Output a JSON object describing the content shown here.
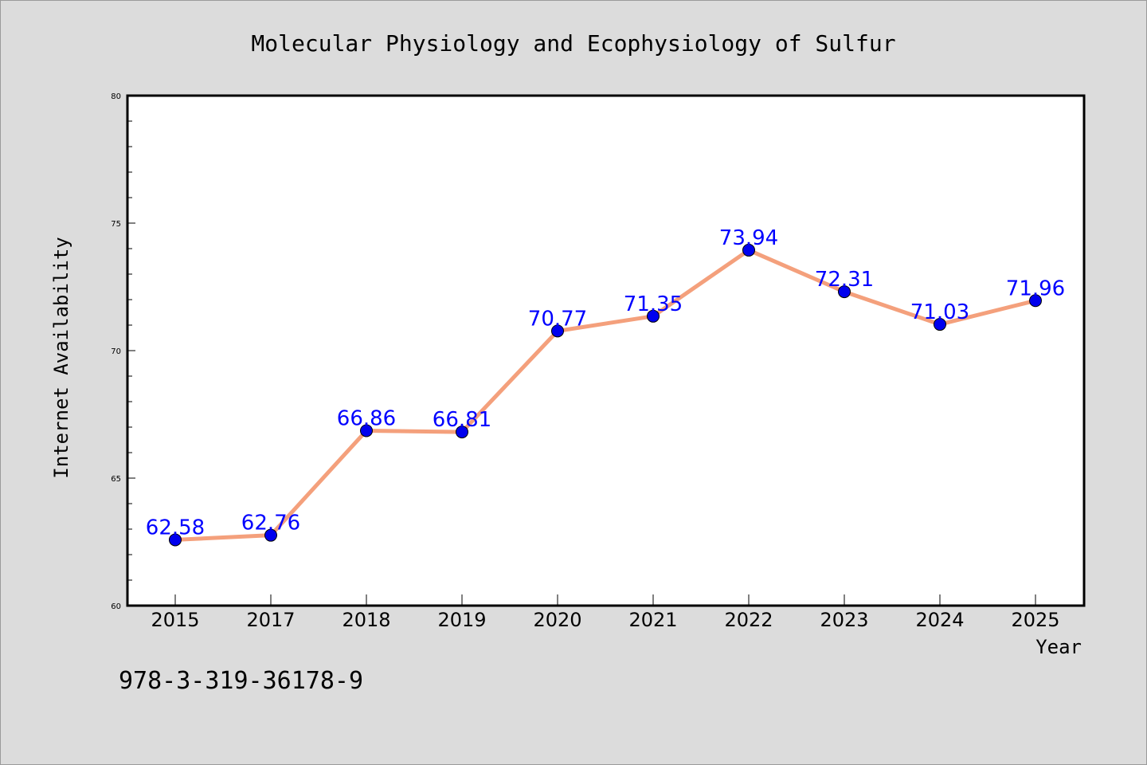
{
  "chart_data": {
    "type": "line",
    "title": "Molecular Physiology and Ecophysiology of Sulfur",
    "xlabel": "Year",
    "ylabel": "Internet Availability",
    "categories": [
      "2015",
      "2017",
      "2018",
      "2019",
      "2020",
      "2021",
      "2022",
      "2023",
      "2024",
      "2025"
    ],
    "series": [
      {
        "values": [
          62.58,
          62.76,
          66.86,
          66.81,
          70.77,
          71.35,
          73.94,
          72.31,
          71.03,
          71.96
        ],
        "labels": [
          "62.58",
          "62.76",
          "66.86",
          "66.81",
          "70.77",
          "71.35",
          "73.94",
          "72.31",
          "71.03",
          "71.96"
        ],
        "line_color": "#f4a07c",
        "marker_color": "#0000ee"
      }
    ],
    "ylim": [
      60,
      80
    ],
    "yticks": [
      "60",
      "65",
      "70",
      "75",
      "80"
    ],
    "legend": "none",
    "grid": false,
    "annotation": "978-3-319-36178-9",
    "background_color": "#dcdcdc",
    "plot_background_color": "#ffffff",
    "label_color": "#0000ff"
  }
}
